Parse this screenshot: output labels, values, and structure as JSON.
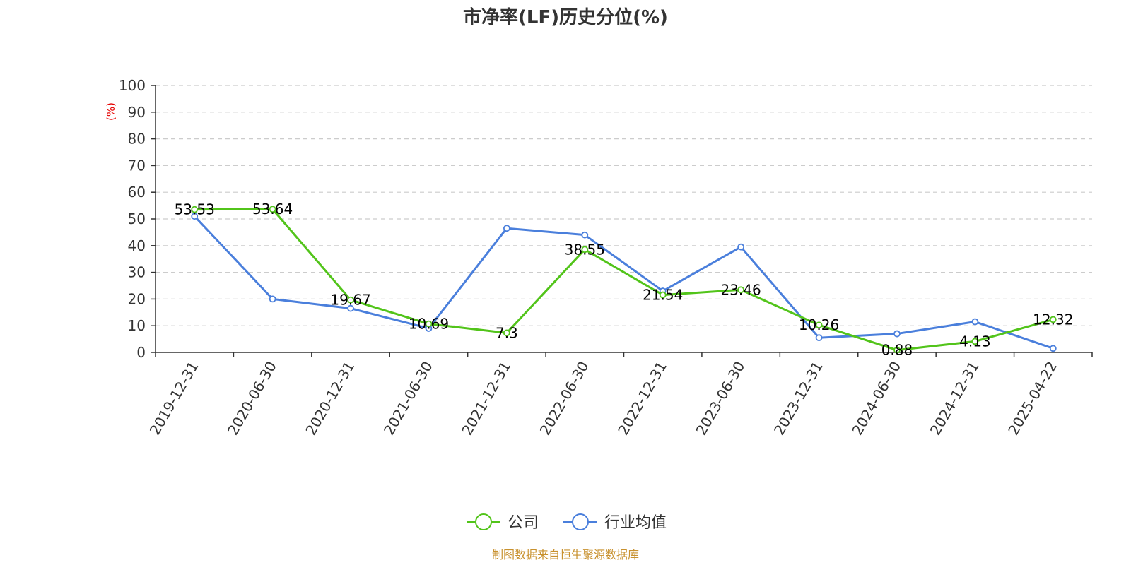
{
  "chart_data": {
    "type": "line",
    "title": "市净率(LF)历史分位(%)",
    "ylabel": "(%)",
    "ylim": [
      0,
      100
    ],
    "yticks": [
      0,
      10,
      20,
      30,
      40,
      50,
      60,
      70,
      80,
      90,
      100
    ],
    "categories": [
      "2019-12-31",
      "2020-06-30",
      "2020-12-31",
      "2021-06-30",
      "2021-12-31",
      "2022-06-30",
      "2022-12-31",
      "2023-06-30",
      "2023-12-31",
      "2024-06-30",
      "2024-12-31",
      "2025-04-22"
    ],
    "grid": true,
    "legend_position": "bottom",
    "series": [
      {
        "name": "公司",
        "color": "#52c41a",
        "values": [
          53.53,
          53.64,
          19.67,
          10.69,
          7.3,
          38.55,
          21.54,
          23.46,
          10.26,
          0.88,
          4.13,
          12.32
        ],
        "labels": [
          "53.53",
          "53.64",
          "19.67",
          "10.69",
          "7.3",
          "38.55",
          "21.54",
          "23.46",
          "10.26",
          "0.88",
          "4.13",
          "12.32"
        ]
      },
      {
        "name": "行业均值",
        "color": "#4a7fdc",
        "values": [
          51,
          20,
          16.5,
          9,
          46.5,
          44,
          23,
          39.5,
          5.5,
          7,
          11.5,
          1.5
        ]
      }
    ]
  },
  "source": "制图数据来自恒生聚源数据库"
}
